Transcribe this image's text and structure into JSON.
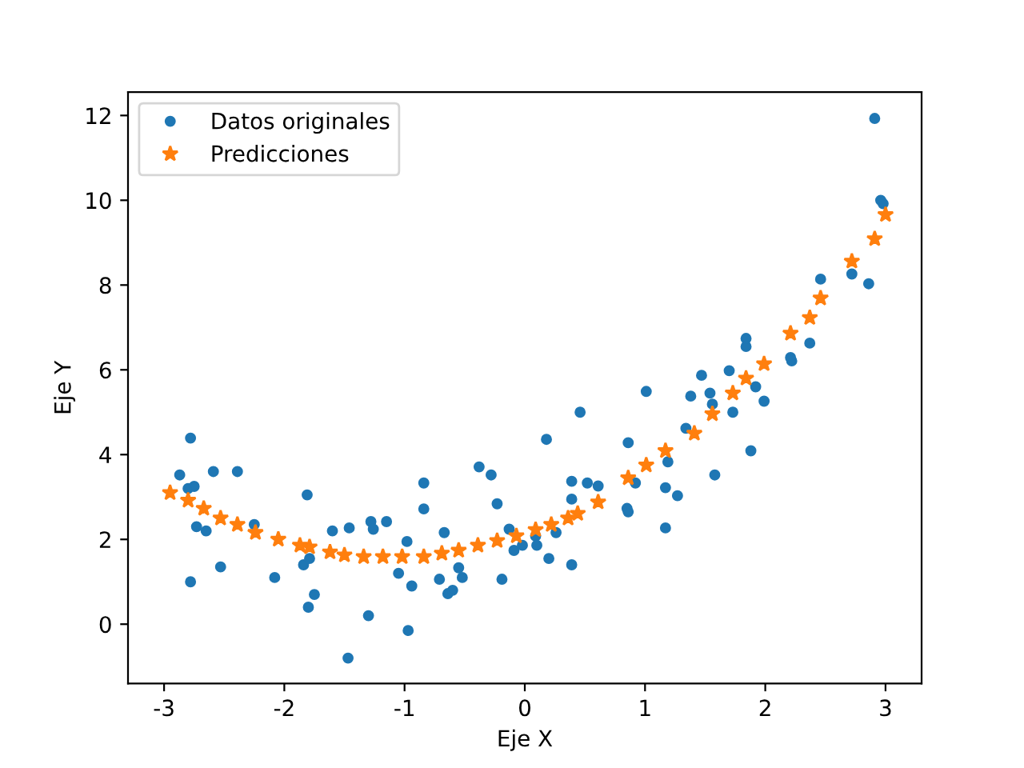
{
  "chart_data": {
    "type": "scatter",
    "xlabel": "Eje X",
    "ylabel": "Eje Y",
    "xlim": [
      -3.3,
      3.3
    ],
    "ylim": [
      -1.4,
      12.55
    ],
    "xticks": [
      -3,
      -2,
      -1,
      0,
      1,
      2,
      3
    ],
    "yticks": [
      0,
      2,
      4,
      6,
      8,
      10,
      12
    ],
    "grid": false,
    "legend": "top left",
    "series": [
      {
        "name": "Datos originales",
        "color": "#1f77b4",
        "marker": "circle",
        "x": [
          -2.87,
          -2.78,
          -2.8,
          -2.75,
          -2.73,
          -2.65,
          -2.78,
          -2.59,
          -2.53,
          -2.39,
          -2.25,
          -2.08,
          -1.81,
          -1.8,
          -1.75,
          -1.84,
          -1.79,
          -1.6,
          -1.46,
          -1.47,
          -1.3,
          -1.28,
          -1.26,
          -1.15,
          -1.05,
          -0.98,
          -0.97,
          -0.94,
          -0.84,
          -0.84,
          -0.67,
          -0.71,
          -0.64,
          -0.6,
          -0.55,
          -0.52,
          -0.38,
          -0.28,
          -0.23,
          -0.19,
          -0.13,
          -0.09,
          -0.02,
          0.09,
          0.1,
          0.2,
          0.26,
          0.18,
          0.39,
          0.39,
          0.39,
          0.46,
          0.52,
          0.61,
          0.86,
          0.85,
          0.86,
          0.92,
          1.01,
          1.17,
          1.19,
          1.17,
          1.27,
          1.34,
          1.38,
          1.47,
          1.54,
          1.58,
          1.56,
          1.73,
          1.7,
          1.92,
          1.99,
          1.88,
          1.84,
          1.84,
          2.21,
          2.22,
          2.37,
          2.46,
          2.72,
          2.86,
          2.91,
          2.96,
          2.98
        ],
        "values": [
          3.52,
          4.39,
          3.2,
          3.25,
          2.3,
          2.2,
          1.0,
          3.6,
          1.35,
          3.6,
          2.35,
          1.1,
          3.05,
          0.4,
          0.7,
          1.4,
          1.55,
          2.2,
          2.27,
          -0.8,
          0.2,
          2.42,
          2.24,
          2.42,
          1.2,
          1.95,
          -0.15,
          0.9,
          2.72,
          3.33,
          2.16,
          1.06,
          0.72,
          0.8,
          1.33,
          1.1,
          3.71,
          3.52,
          2.84,
          1.06,
          2.24,
          1.74,
          1.86,
          2.08,
          1.86,
          1.55,
          2.16,
          4.36,
          1.4,
          3.37,
          2.95,
          5.0,
          3.33,
          3.26,
          4.28,
          2.73,
          2.65,
          3.33,
          5.49,
          3.22,
          3.83,
          2.27,
          3.03,
          4.62,
          5.38,
          5.87,
          5.45,
          3.52,
          5.19,
          5.0,
          5.98,
          5.6,
          5.26,
          4.09,
          6.55,
          6.74,
          6.29,
          6.21,
          6.63,
          8.14,
          8.26,
          8.03,
          11.93,
          10.0,
          9.92
        ]
      },
      {
        "name": "Predicciones",
        "color": "#ff7f0e",
        "marker": "star",
        "x": [
          3.0,
          2.91,
          2.72,
          2.46,
          2.37,
          2.21,
          1.99,
          1.84,
          1.73,
          1.56,
          1.41,
          1.17,
          1.01,
          0.86,
          0.61,
          0.44,
          0.36,
          0.22,
          0.09,
          -0.07,
          -0.23,
          -0.39,
          -0.55,
          -0.69,
          -0.84,
          -1.02,
          -1.18,
          -1.34,
          -1.5,
          -1.62,
          -1.79,
          -1.87,
          -2.05,
          -2.24,
          -2.39,
          -2.53,
          -2.67,
          -2.8,
          -2.95
        ],
        "values": [
          9.66,
          9.09,
          8.56,
          7.69,
          7.23,
          6.86,
          6.14,
          5.8,
          5.45,
          4.96,
          4.5,
          4.09,
          3.75,
          3.45,
          2.88,
          2.61,
          2.5,
          2.35,
          2.23,
          2.08,
          1.97,
          1.86,
          1.74,
          1.67,
          1.59,
          1.59,
          1.59,
          1.59,
          1.63,
          1.7,
          1.82,
          1.86,
          2.0,
          2.16,
          2.35,
          2.5,
          2.73,
          2.92,
          3.1
        ]
      }
    ]
  }
}
